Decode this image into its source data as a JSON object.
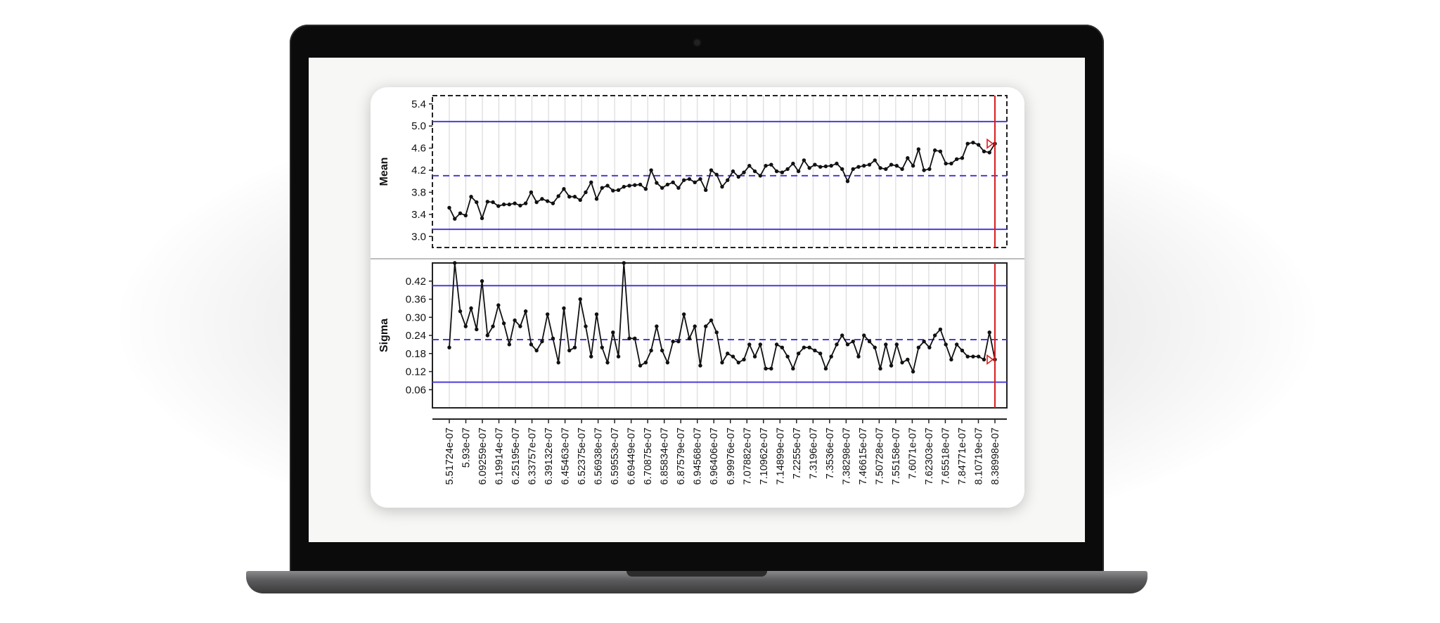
{
  "chart_data": [
    {
      "type": "line",
      "ylabel": "Mean",
      "y_ticks": [
        "5.4",
        "5.0",
        "4.6",
        "4.2",
        "3.8",
        "3.4",
        "3.0"
      ],
      "ylim": [
        2.8,
        5.55
      ],
      "ucl": 5.08,
      "center": 4.1,
      "lcl": 3.13,
      "values": [
        3.52,
        3.32,
        3.42,
        3.38,
        3.72,
        3.62,
        3.33,
        3.63,
        3.62,
        3.55,
        3.58,
        3.58,
        3.6,
        3.56,
        3.6,
        3.8,
        3.62,
        3.68,
        3.64,
        3.6,
        3.73,
        3.86,
        3.72,
        3.72,
        3.66,
        3.8,
        3.98,
        3.68,
        3.88,
        3.92,
        3.83,
        3.84,
        3.9,
        3.92,
        3.93,
        3.94,
        3.86,
        4.2,
        3.97,
        3.88,
        3.94,
        3.98,
        3.88,
        4.02,
        4.04,
        3.98,
        4.04,
        3.84,
        4.2,
        4.12,
        3.9,
        4.02,
        4.18,
        4.08,
        4.16,
        4.28,
        4.18,
        4.1,
        4.28,
        4.3,
        4.18,
        4.16,
        4.22,
        4.32,
        4.18,
        4.38,
        4.24,
        4.3,
        4.26,
        4.27,
        4.28,
        4.32,
        4.22,
        4.0,
        4.22,
        4.26,
        4.28,
        4.3,
        4.38,
        4.24,
        4.22,
        4.3,
        4.28,
        4.22,
        4.42,
        4.28,
        4.58,
        4.2,
        4.22,
        4.56,
        4.54,
        4.32,
        4.32,
        4.4,
        4.42,
        4.68,
        4.7,
        4.66,
        4.54,
        4.52,
        4.68
      ]
    },
    {
      "type": "line",
      "ylabel": "Sigma",
      "y_ticks": [
        "0.42",
        "0.36",
        "0.30",
        "0.24",
        "0.18",
        "0.12",
        "0.06"
      ],
      "ylim": [
        0.0,
        0.48
      ],
      "ucl": 0.405,
      "center": 0.226,
      "lcl": 0.085,
      "values": [
        0.2,
        0.48,
        0.32,
        0.27,
        0.33,
        0.26,
        0.42,
        0.24,
        0.27,
        0.34,
        0.28,
        0.21,
        0.29,
        0.27,
        0.32,
        0.21,
        0.19,
        0.22,
        0.31,
        0.23,
        0.15,
        0.33,
        0.19,
        0.2,
        0.36,
        0.27,
        0.17,
        0.31,
        0.2,
        0.15,
        0.25,
        0.17,
        0.48,
        0.23,
        0.23,
        0.14,
        0.15,
        0.19,
        0.27,
        0.19,
        0.15,
        0.22,
        0.22,
        0.31,
        0.23,
        0.27,
        0.14,
        0.27,
        0.29,
        0.25,
        0.15,
        0.18,
        0.17,
        0.15,
        0.16,
        0.21,
        0.17,
        0.21,
        0.13,
        0.13,
        0.21,
        0.2,
        0.17,
        0.13,
        0.18,
        0.2,
        0.2,
        0.19,
        0.18,
        0.13,
        0.17,
        0.21,
        0.24,
        0.21,
        0.22,
        0.17,
        0.24,
        0.22,
        0.2,
        0.13,
        0.21,
        0.14,
        0.21,
        0.15,
        0.16,
        0.12,
        0.2,
        0.22,
        0.2,
        0.24,
        0.26,
        0.21,
        0.16,
        0.21,
        0.19,
        0.17,
        0.17,
        0.17,
        0.16,
        0.25,
        0.16
      ]
    }
  ],
  "x_tick_labels": [
    "5.51724e-07",
    "5.93e-07",
    "6.09259e-07",
    "6.19914e-07",
    "6.25195e-07",
    "6.33757e-07",
    "6.39132e-07",
    "6.45463e-07",
    "6.52375e-07",
    "6.56938e-07",
    "6.59553e-07",
    "6.69449e-07",
    "6.70875e-07",
    "6.85834e-07",
    "6.87579e-07",
    "6.94568e-07",
    "6.96406e-07",
    "6.99976e-07",
    "7.07882e-07",
    "7.10962e-07",
    "7.14899e-07",
    "7.2255e-07",
    "7.3196e-07",
    "7.3536e-07",
    "7.38298e-07",
    "7.46615e-07",
    "7.50728e-07",
    "7.55158e-07",
    "7.6071e-07",
    "7.62303e-07",
    "7.65518e-07",
    "7.84771e-07",
    "8.10719e-07",
    "8.38998e-07"
  ],
  "colors": {
    "control_limit": "#4b3bd8",
    "series_line": "#111111",
    "marker_line": "#d81e1e",
    "grid": "#d4d4d4"
  }
}
